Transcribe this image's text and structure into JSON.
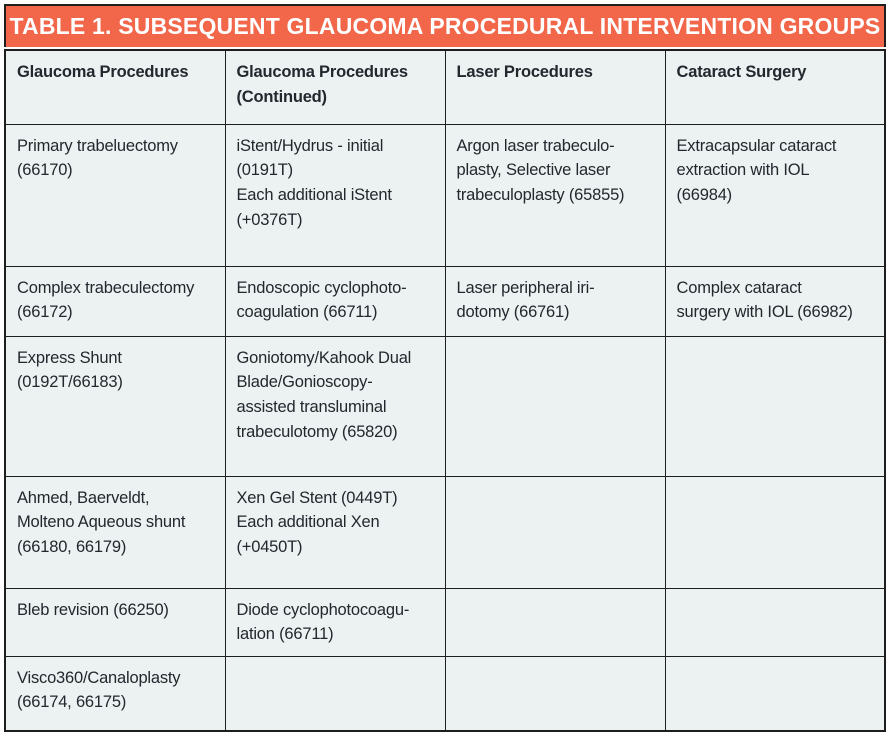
{
  "title": "TABLE 1. SUBSEQUENT GLAUCOMA PROCEDURAL INTERVENTION GROUPS",
  "columns": [
    "Glaucoma Procedures",
    "Glaucoma Procedures\n(Continued)",
    "Laser Procedures",
    "Cataract Surgery"
  ],
  "rows": [
    {
      "cells": [
        "Primary trabeluectomy\n(66170)",
        "iStent/Hydrus - initial\n(0191T)\nEach additional iStent\n(+0376T)",
        "Argon laser trabeculo-\nplasty, Selective laser\ntrabeculoplasty (65855)",
        "Extracapsular cataract\nextraction with IOL\n(66984)"
      ]
    },
    {
      "cells": [
        "Complex trabeculectomy\n(66172)",
        "Endoscopic cyclophoto-\ncoagulation (66711)",
        "Laser peripheral iri-\ndotomy (66761)",
        "Complex cataract\nsurgery with IOL (66982)"
      ]
    },
    {
      "cells": [
        "Express Shunt\n(0192T/66183)",
        "Goniotomy/Kahook Dual\nBlade/Gonioscopy-\nassisted transluminal\ntrabeculotomy (65820)",
        "",
        ""
      ]
    },
    {
      "cells": [
        "Ahmed, Baerveldt,\nMolteno Aqueous shunt\n(66180, 66179)",
        "Xen Gel Stent (0449T)\nEach additional Xen\n(+0450T)",
        "",
        ""
      ]
    },
    {
      "cells": [
        "Bleb revision (66250)",
        "Diode cyclophotocoagu-\nlation (66711)",
        "",
        ""
      ]
    },
    {
      "cells": [
        "Visco360/Canaloplasty\n(66174, 66175)",
        "",
        "",
        ""
      ]
    }
  ],
  "colors": {
    "header_bg": "#F2664A",
    "header_text": "#FFFFFF",
    "cell_bg": "#ECF2F1",
    "border": "#1E1E1E",
    "text": "#23272E"
  }
}
